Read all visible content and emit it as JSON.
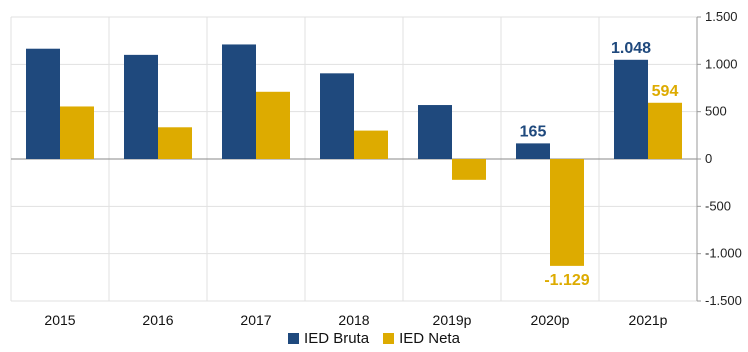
{
  "chart_data": {
    "type": "bar",
    "categories": [
      "2015",
      "2016",
      "2017",
      "2018",
      "2019p",
      "2020p",
      "2021p"
    ],
    "series": [
      {
        "name": "IED Bruta",
        "color": "#1f497d",
        "values": [
          1165,
          1100,
          1210,
          905,
          570,
          165,
          1048
        ]
      },
      {
        "name": "IED Neta",
        "color": "#ddab00",
        "values": [
          555,
          335,
          710,
          300,
          -220,
          -1129,
          594
        ]
      }
    ],
    "ylim": [
      -1500,
      1500
    ],
    "yticks": [
      1500,
      1000,
      500,
      0,
      -500,
      -1000,
      -1500
    ],
    "ytick_labels": [
      "1.500",
      "1.000",
      "500",
      "0",
      "-500",
      "-1.000",
      "-1.500"
    ],
    "y_axis_side": "right",
    "grid": true,
    "legend_position": "bottom",
    "data_labels": [
      {
        "series": 0,
        "category": "2020p",
        "text": "165"
      },
      {
        "series": 1,
        "category": "2020p",
        "text": "-1.129"
      },
      {
        "series": 0,
        "category": "2021p",
        "text": "1.048"
      },
      {
        "series": 1,
        "category": "2021p",
        "text": "594"
      }
    ]
  }
}
